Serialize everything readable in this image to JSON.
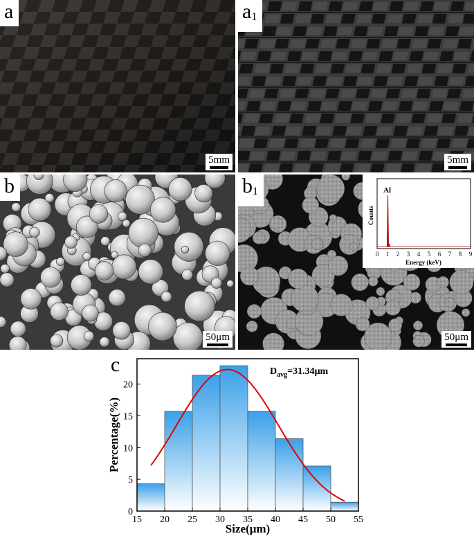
{
  "panels": {
    "a": {
      "letter": "a",
      "sub": "",
      "scale_label": "5mm"
    },
    "a1": {
      "letter": "a",
      "sub": "1",
      "scale_label": "5mm"
    },
    "b": {
      "letter": "b",
      "sub": "",
      "scale_label": "50μm"
    },
    "b1": {
      "letter": "b",
      "sub": "1",
      "scale_label": "50μm"
    }
  },
  "eds_inset": {
    "peak_label": "Al",
    "ylabel": "Counts",
    "xlabel": "Energy (keV)",
    "ticks": [
      "0",
      "1",
      "2",
      "3",
      "4",
      "5",
      "6",
      "7",
      "8",
      "9"
    ],
    "peak_energy_keV": 1.49,
    "peak_color": "#b00000"
  },
  "chart_letter": "c",
  "chart_data": {
    "type": "bar",
    "title": "",
    "annotation": {
      "main": "D",
      "sub": "avg",
      "rest": "=31.34μm"
    },
    "xlabel": "Size(μm)",
    "ylabel": "Percentage(%)",
    "xlim": [
      15,
      55
    ],
    "ylim": [
      0,
      24
    ],
    "xticks": [
      15,
      20,
      25,
      30,
      35,
      40,
      45,
      50,
      55
    ],
    "yticks": [
      0,
      5,
      10,
      15,
      20
    ],
    "bins": [
      [
        15,
        20
      ],
      [
        20,
        25
      ],
      [
        25,
        30
      ],
      [
        30,
        35
      ],
      [
        35,
        40
      ],
      [
        40,
        45
      ],
      [
        45,
        50
      ],
      [
        50,
        55
      ]
    ],
    "values": [
      4.3,
      15.7,
      21.4,
      22.9,
      15.7,
      11.4,
      7.1,
      1.4
    ],
    "fit_curve": {
      "type": "gaussian",
      "mean": 31.34,
      "peak": 22.3,
      "sigma": 9.2,
      "x_range": [
        17.5,
        52.5
      ],
      "color": "#e00000"
    },
    "bar_color_top": "#3aa0e8",
    "bar_color_bottom": "#ffffff"
  }
}
